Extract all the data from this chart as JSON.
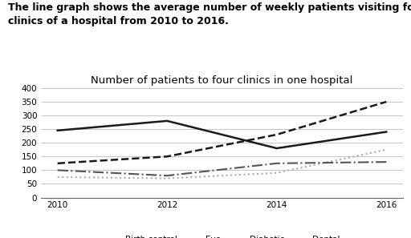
{
  "title": "Number of patients to four clinics in one hospital",
  "description_line1": "The line graph shows the average number of weekly patients visiting four",
  "description_line2": "clinics of a hospital from 2010 to 2016.",
  "years": [
    2010,
    2012,
    2014,
    2016
  ],
  "series": {
    "Birth control": [
      245,
      280,
      180,
      240
    ],
    "Eye": [
      125,
      150,
      230,
      350
    ],
    "Diabetic": [
      75,
      70,
      90,
      175
    ],
    "Dental": [
      100,
      80,
      125,
      130
    ]
  },
  "styles": {
    "Birth control": {
      "color": "#1a1a1a",
      "linestyle": "-",
      "linewidth": 1.8
    },
    "Eye": {
      "color": "#1a1a1a",
      "linestyle": "--",
      "linewidth": 1.8
    },
    "Diabetic": {
      "color": "#aaaaaa",
      "linestyle": ":",
      "linewidth": 1.5
    },
    "Dental": {
      "color": "#555555",
      "linestyle": "-.",
      "linewidth": 1.5
    }
  },
  "ylim": [
    0,
    400
  ],
  "yticks": [
    0,
    50,
    100,
    150,
    200,
    250,
    300,
    350,
    400
  ],
  "xticks": [
    2010,
    2012,
    2014,
    2016
  ],
  "background_color": "#ffffff",
  "grid_color": "#bbbbbb",
  "description_fontsize": 9,
  "title_fontsize": 9.5,
  "tick_fontsize": 7.5,
  "legend_fontsize": 7.5
}
